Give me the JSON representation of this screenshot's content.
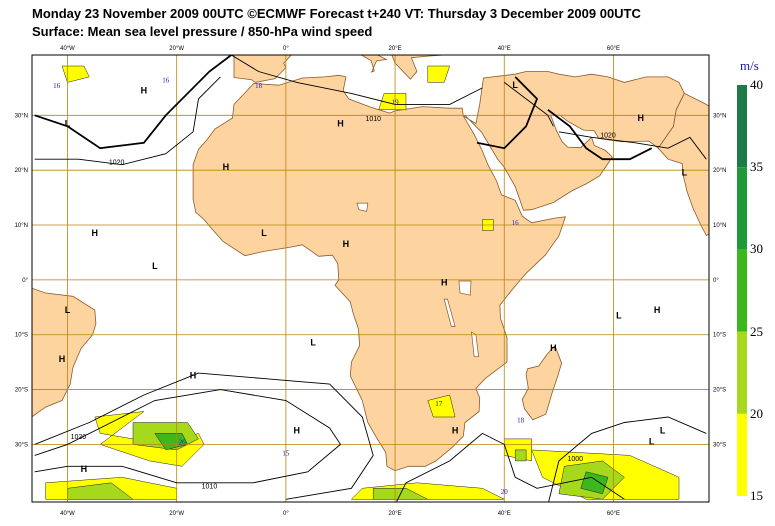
{
  "header": {
    "line1": "Monday 23 November 2009 00UTC ©ECMWF Forecast t+240 VT: Thursday 3 December 2009 00UTC",
    "line2": "Surface: Mean sea level pressure / 850-hPa wind speed"
  },
  "legend": {
    "unit": "m/s",
    "ticks": [
      "40",
      "35",
      "30",
      "25",
      "20",
      "15"
    ],
    "bands": [
      {
        "from": 35,
        "to": 40,
        "color": "#1e7a46"
      },
      {
        "from": 30,
        "to": 35,
        "color": "#1f9a3a"
      },
      {
        "from": 25,
        "to": 30,
        "color": "#3cb81e"
      },
      {
        "from": 20,
        "to": 25,
        "color": "#a6d81c"
      },
      {
        "from": 15,
        "to": 20,
        "color": "#ffff00"
      }
    ]
  },
  "axes": {
    "lon_labels": [
      "40°W",
      "20°W",
      "0°",
      "20°E",
      "40°E",
      "60°E"
    ],
    "lat_labels": [
      "30°N",
      "20°N",
      "10°N",
      "0°",
      "10°S",
      "20°S",
      "30°S"
    ],
    "lon_labels_bottom": [
      "40°W",
      "20°W",
      "0°",
      "20°E",
      "40°E",
      "60°E"
    ]
  },
  "colors": {
    "land": "#fdd3a0",
    "coast": "#8b5a2b",
    "grid": "#b8860b",
    "isobar": "#000000"
  },
  "pressure_centers": [
    {
      "label": "H",
      "lon": -26,
      "lat": 34
    },
    {
      "label": "L",
      "lon": -40,
      "lat": 28
    },
    {
      "label": "H",
      "lon": 10,
      "lat": 28
    },
    {
      "label": "H",
      "lon": -11,
      "lat": 20
    },
    {
      "label": "L",
      "lon": 42,
      "lat": 35
    },
    {
      "label": "L",
      "lon": 73,
      "lat": 19
    },
    {
      "label": "H",
      "lon": 65,
      "lat": 29
    },
    {
      "label": "L",
      "lon": -4,
      "lat": 8
    },
    {
      "label": "H",
      "lon": 11,
      "lat": 6
    },
    {
      "label": "H",
      "lon": -35,
      "lat": 8
    },
    {
      "label": "L",
      "lon": -24,
      "lat": 2
    },
    {
      "label": "L",
      "lon": -40,
      "lat": -6
    },
    {
      "label": "H",
      "lon": 29,
      "lat": -1
    },
    {
      "label": "L",
      "lon": 61,
      "lat": -7
    },
    {
      "label": "H",
      "lon": 68,
      "lat": -6
    },
    {
      "label": "H",
      "lon": -41,
      "lat": -15
    },
    {
      "label": "L",
      "lon": 5,
      "lat": -12
    },
    {
      "label": "H",
      "lon": 49,
      "lat": -13
    },
    {
      "label": "H",
      "lon": -17,
      "lat": -18
    },
    {
      "label": "H",
      "lon": 2,
      "lat": -28
    },
    {
      "label": "H",
      "lon": 31,
      "lat": -28
    },
    {
      "label": "L",
      "lon": 69,
      "lat": -28
    },
    {
      "label": "L",
      "lon": 67,
      "lat": -30
    },
    {
      "label": "H",
      "lon": -37,
      "lat": -35
    }
  ],
  "isobar_labels": [
    {
      "text": "1020",
      "lon": -31,
      "lat": 21
    },
    {
      "text": "1020",
      "lon": 59,
      "lat": 26
    },
    {
      "text": "1020",
      "lon": -38,
      "lat": -29
    },
    {
      "text": "1010",
      "lon": 16,
      "lat": 29
    },
    {
      "text": "1010",
      "lon": -14,
      "lat": -38
    },
    {
      "text": "1000",
      "lon": 53,
      "lat": -33
    }
  ],
  "wind_max_labels": [
    {
      "text": "16",
      "lon": -42,
      "lat": 35
    },
    {
      "text": "16",
      "lon": -22,
      "lat": 36
    },
    {
      "text": "18",
      "lon": -5,
      "lat": 35
    },
    {
      "text": "19",
      "lon": 20,
      "lat": 32
    },
    {
      "text": "16",
      "lon": 42,
      "lat": 10
    },
    {
      "text": "17",
      "lon": 28,
      "lat": -23
    },
    {
      "text": "18",
      "lon": 43,
      "lat": -26
    },
    {
      "text": "26",
      "lon": -19,
      "lat": -30
    },
    {
      "text": "15",
      "lon": 0,
      "lat": -32
    },
    {
      "text": "20",
      "lon": 40,
      "lat": -39
    }
  ],
  "wind_patches": [
    {
      "kind": "y",
      "pts": [
        [
          -26,
          -24
        ],
        [
          -35,
          -25
        ],
        [
          -34,
          -28
        ],
        [
          -22,
          -30
        ],
        [
          -16,
          -28
        ],
        [
          -15,
          -30
        ],
        [
          -19,
          -34
        ],
        [
          -25,
          -33
        ],
        [
          -34,
          -30
        ]
      ]
    },
    {
      "kind": "g",
      "pts": [
        [
          -28,
          -26
        ],
        [
          -18,
          -26
        ],
        [
          -16,
          -29
        ],
        [
          -20,
          -31
        ],
        [
          -28,
          -30
        ]
      ]
    },
    {
      "kind": "d",
      "pts": [
        [
          -24,
          -28
        ],
        [
          -19,
          -28
        ],
        [
          -18,
          -30
        ],
        [
          -22,
          -31
        ]
      ]
    },
    {
      "kind": "y",
      "pts": [
        [
          -44,
          -37
        ],
        [
          -30,
          -36
        ],
        [
          -20,
          -38
        ],
        [
          -20,
          -40
        ],
        [
          -44,
          -40
        ]
      ]
    },
    {
      "kind": "g",
      "pts": [
        [
          -40,
          -38
        ],
        [
          -32,
          -37
        ],
        [
          -28,
          -40
        ],
        [
          -40,
          -40
        ]
      ]
    },
    {
      "kind": "y",
      "pts": [
        [
          45,
          -31
        ],
        [
          63,
          -32
        ],
        [
          72,
          -36
        ],
        [
          72,
          -40
        ],
        [
          55,
          -40
        ],
        [
          47,
          -36
        ]
      ]
    },
    {
      "kind": "g",
      "pts": [
        [
          51,
          -34
        ],
        [
          58,
          -33
        ],
        [
          62,
          -36
        ],
        [
          58,
          -40
        ],
        [
          50,
          -39
        ]
      ]
    },
    {
      "kind": "d",
      "pts": [
        [
          55,
          -35
        ],
        [
          59,
          -36
        ],
        [
          58,
          -39
        ],
        [
          54,
          -38
        ]
      ]
    },
    {
      "kind": "y",
      "pts": [
        [
          14,
          -38
        ],
        [
          24,
          -37
        ],
        [
          36,
          -38
        ],
        [
          40,
          -40
        ],
        [
          12,
          -40
        ]
      ]
    },
    {
      "kind": "g",
      "pts": [
        [
          16,
          -38
        ],
        [
          22,
          -38
        ],
        [
          26,
          -40
        ],
        [
          16,
          -40
        ]
      ]
    },
    {
      "kind": "y",
      "pts": [
        [
          40,
          -29
        ],
        [
          45,
          -29
        ],
        [
          45,
          -33
        ],
        [
          40,
          -32
        ]
      ]
    },
    {
      "kind": "g",
      "pts": [
        [
          42,
          -31
        ],
        [
          44,
          -31
        ],
        [
          44,
          -33
        ],
        [
          42,
          -33
        ]
      ]
    },
    {
      "kind": "y",
      "pts": [
        [
          26,
          -22
        ],
        [
          30,
          -21
        ],
        [
          31,
          -25
        ],
        [
          27,
          -25
        ]
      ]
    },
    {
      "kind": "y",
      "pts": [
        [
          18,
          34
        ],
        [
          22,
          34
        ],
        [
          22,
          31
        ],
        [
          17,
          31
        ]
      ]
    },
    {
      "kind": "y",
      "pts": [
        [
          26,
          39
        ],
        [
          30,
          39
        ],
        [
          29,
          36
        ],
        [
          26,
          36
        ]
      ]
    },
    {
      "kind": "y",
      "pts": [
        [
          -41,
          39
        ],
        [
          -37,
          39
        ],
        [
          -36,
          37
        ],
        [
          -40,
          36
        ]
      ]
    },
    {
      "kind": "y",
      "pts": [
        [
          36,
          11
        ],
        [
          38,
          11
        ],
        [
          38,
          9
        ],
        [
          36,
          9
        ]
      ]
    }
  ]
}
